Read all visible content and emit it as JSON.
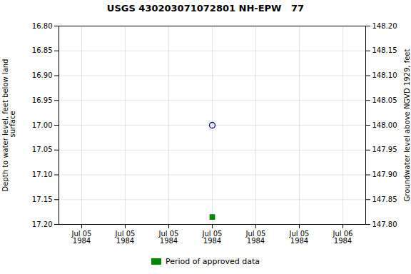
{
  "chart_data": {
    "type": "scatter",
    "title": "USGS 430203071072801 NH-EPW   77",
    "ylabel": "Depth to water level, feet below land\n surface",
    "y2label": "Groundwater level above NGVD 1929, feet",
    "categories": [
      "Jul 05\n1984",
      "Jul 05\n1984",
      "Jul 05\n1984",
      "Jul 05\n1984",
      "Jul 05\n1984",
      "Jul 05\n1984",
      "Jul 06\n1984"
    ],
    "series": [
      {
        "color": "#0000cc",
        "marker": "circle_open",
        "values": [
          null,
          null,
          null,
          17.0,
          null,
          null,
          null
        ]
      },
      {
        "name": "Period of approved data",
        "color": "#008800",
        "marker": "square",
        "values": [
          null,
          null,
          null,
          17.185,
          null,
          null,
          null
        ]
      }
    ],
    "ylim": [
      17.2,
      16.8
    ],
    "yticks": [
      {
        "value": 16.8,
        "label": "16.80"
      },
      16.85,
      {
        "value": 16.9,
        "label": "16.90"
      },
      16.95,
      {
        "value": 17.0,
        "label": "17.00"
      },
      17.05,
      {
        "value": 17.1,
        "label": "17.10"
      },
      17.15,
      {
        "value": 17.2,
        "label": "17.20"
      }
    ],
    "y2lim": [
      147.8,
      148.2
    ],
    "y2ticks": [
      {
        "value": 147.8,
        "label": "147.80"
      },
      147.85,
      {
        "value": 147.9,
        "label": "147.90"
      },
      147.95,
      {
        "value": 148.0,
        "label": "148.00"
      },
      148.05,
      {
        "value": 148.1,
        "label": "148.10"
      },
      148.15,
      {
        "value": 148.2,
        "label": "148.20"
      }
    ],
    "grid": true,
    "legend": "bottom"
  }
}
